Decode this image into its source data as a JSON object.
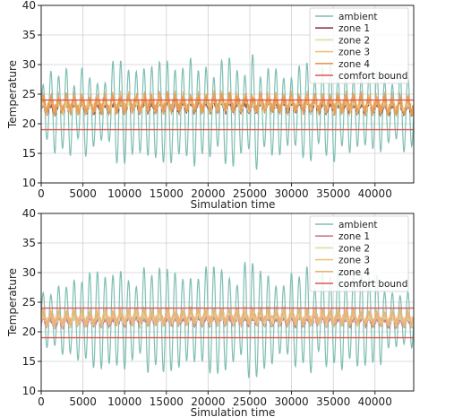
{
  "chart_data": [
    {
      "type": "line",
      "title": "",
      "xlabel": "Simulation time",
      "ylabel": "Temperature",
      "xlim": [
        0,
        44640
      ],
      "ylim": [
        10,
        40
      ],
      "xticks": [
        0,
        5000,
        10000,
        15000,
        20000,
        25000,
        30000,
        35000,
        40000
      ],
      "yticks": [
        10,
        15,
        20,
        25,
        30,
        35,
        40
      ],
      "grid": true,
      "legend_position": "top-right",
      "comfort_bounds": [
        19,
        24
      ],
      "series": [
        {
          "name": "ambient",
          "color": "#7fbfb3",
          "mean_c": 25,
          "amp_c": 10,
          "osc_periods": 48
        },
        {
          "name": "zone 1",
          "color": "#8b3a4a",
          "mean_c": 22.6,
          "amp_c": 1.1
        },
        {
          "name": "zone 2",
          "color": "#cfe3a3",
          "mean_c": 22.9,
          "amp_c": 1.3
        },
        {
          "name": "zone 3",
          "color": "#f0c27a",
          "mean_c": 23.1,
          "amp_c": 1.5
        },
        {
          "name": "zone 4",
          "color": "#e89a50",
          "mean_c": 23.2,
          "amp_c": 1.7
        },
        {
          "name": "comfort bound",
          "color": "#e05555"
        }
      ]
    },
    {
      "type": "line",
      "title": "",
      "xlabel": "Simulation time",
      "ylabel": "Temperature",
      "xlim": [
        0,
        44640
      ],
      "ylim": [
        10,
        40
      ],
      "xticks": [
        0,
        5000,
        10000,
        15000,
        20000,
        25000,
        30000,
        35000,
        40000
      ],
      "yticks": [
        10,
        15,
        20,
        25,
        30,
        35,
        40
      ],
      "grid": true,
      "legend_position": "top-right",
      "comfort_bounds": [
        19,
        24
      ],
      "series": [
        {
          "name": "ambient",
          "color": "#7fbfb3",
          "mean_c": 25,
          "amp_c": 10,
          "osc_periods": 48
        },
        {
          "name": "zone 1",
          "color": "#c77b8a",
          "mean_c": 21.5,
          "amp_c": 0.9
        },
        {
          "name": "zone 2",
          "color": "#cfe3a3",
          "mean_c": 22.0,
          "amp_c": 1.1
        },
        {
          "name": "zone 3",
          "color": "#f0c27a",
          "mean_c": 22.2,
          "amp_c": 1.2
        },
        {
          "name": "zone 4",
          "color": "#e8b27a",
          "mean_c": 22.3,
          "amp_c": 1.4
        },
        {
          "name": "comfort bound",
          "color": "#e05555"
        }
      ]
    }
  ]
}
